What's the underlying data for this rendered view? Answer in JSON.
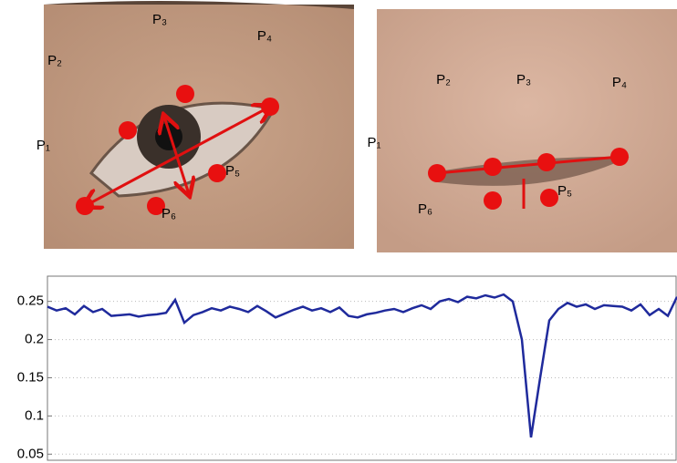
{
  "left_panel": {
    "labels": [
      "P₁",
      "P₂",
      "P₃",
      "P₄",
      "P₅",
      "P₆"
    ]
  },
  "right_panel": {
    "labels": [
      "P₁",
      "P₂",
      "P₃",
      "P₄",
      "P₅",
      "P₆"
    ]
  },
  "chart_data": {
    "type": "line",
    "series": [
      {
        "color": "#1f2a9c",
        "values": [
          0.243,
          0.238,
          0.241,
          0.233,
          0.244,
          0.236,
          0.24,
          0.231,
          0.232,
          0.233,
          0.23,
          0.232,
          0.233,
          0.235,
          0.252,
          0.222,
          0.232,
          0.236,
          0.241,
          0.238,
          0.243,
          0.24,
          0.236,
          0.244,
          0.237,
          0.229,
          0.234,
          0.239,
          0.243,
          0.238,
          0.241,
          0.236,
          0.242,
          0.231,
          0.229,
          0.233,
          0.235,
          0.238,
          0.24,
          0.236,
          0.241,
          0.245,
          0.24,
          0.25,
          0.253,
          0.249,
          0.256,
          0.254,
          0.258,
          0.255,
          0.259,
          0.25,
          0.2,
          0.072,
          0.15,
          0.225,
          0.24,
          0.248,
          0.243,
          0.246,
          0.24,
          0.245,
          0.244,
          0.243,
          0.238,
          0.246,
          0.232,
          0.24,
          0.231,
          0.256
        ]
      }
    ],
    "ylim": [
      0.042,
      0.283
    ],
    "yticks": [
      0.05,
      0.1,
      0.15,
      0.2,
      0.25
    ],
    "grid": true
  }
}
